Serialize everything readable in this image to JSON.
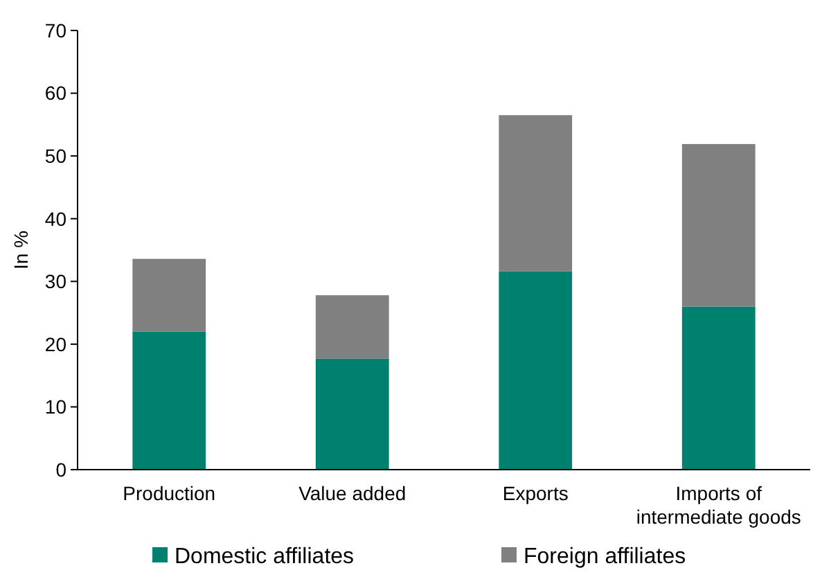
{
  "chart_data": {
    "type": "bar",
    "ylabel": "In %",
    "categories": [
      "Production",
      "Value added",
      "Exports",
      "Imports of intermediate goods"
    ],
    "series": [
      {
        "name": "Domestic affiliates",
        "color": "#00806e",
        "values": [
          22,
          17.7,
          31.6,
          26.0
        ]
      },
      {
        "name": "Foreign affiliates",
        "color": "#808080",
        "values": [
          11.6,
          10.1,
          24.9,
          25.9
        ]
      }
    ],
    "stacked": true,
    "ylim": [
      0,
      70
    ],
    "yticks": [
      0,
      10,
      20,
      30,
      40,
      50,
      60,
      70
    ],
    "grid": false,
    "legend": "bottom"
  }
}
